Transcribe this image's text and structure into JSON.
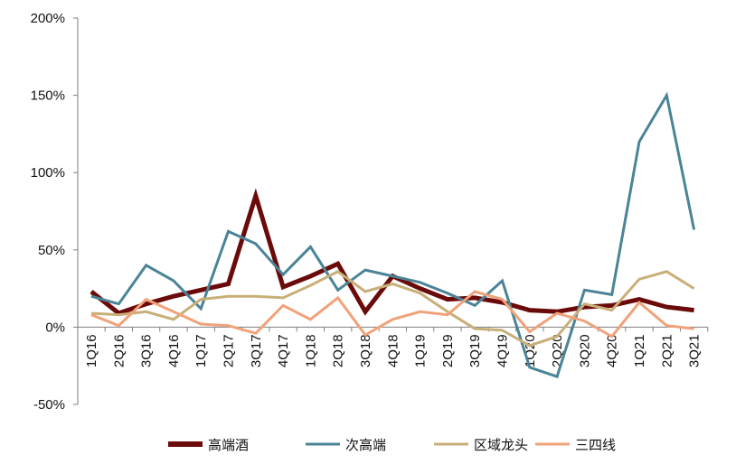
{
  "chart_data": {
    "type": "line",
    "title": "",
    "xlabel": "",
    "ylabel": "",
    "categories": [
      "1Q16",
      "2Q16",
      "3Q16",
      "4Q16",
      "1Q17",
      "2Q17",
      "3Q17",
      "4Q17",
      "1Q18",
      "2Q18",
      "3Q18",
      "4Q18",
      "1Q19",
      "2Q19",
      "3Q19",
      "4Q19",
      "1Q20",
      "2Q20",
      "3Q20",
      "4Q20",
      "1Q21",
      "2Q21",
      "3Q21"
    ],
    "y_ticks": [
      "200%",
      "150%",
      "100%",
      "50%",
      "0%",
      "-50%"
    ],
    "ylim": [
      -50,
      200
    ],
    "y_unit": "%",
    "grid": false,
    "legend_position": "bottom",
    "series": [
      {
        "name": "高端酒",
        "color": "#6B0A0A",
        "values": [
          23,
          9,
          15,
          20,
          24,
          28,
          85,
          26,
          33,
          41,
          10,
          33,
          25,
          18,
          19,
          16,
          11,
          10,
          13,
          14,
          18,
          13,
          11
        ]
      },
      {
        "name": "次高端",
        "color": "#4A8496",
        "values": [
          20,
          15,
          40,
          30,
          12,
          62,
          54,
          34,
          52,
          24,
          37,
          33,
          29,
          22,
          14,
          30,
          -26,
          -32,
          24,
          21,
          120,
          150,
          63
        ]
      },
      {
        "name": "区域龙头",
        "color": "#C8AF78",
        "values": [
          9,
          8,
          10,
          5,
          18,
          20,
          20,
          19,
          27,
          36,
          23,
          28,
          22,
          10,
          -1,
          -2,
          -12,
          -6,
          15,
          11,
          31,
          36,
          25
        ]
      },
      {
        "name": "三四线",
        "color": "#F0A27A",
        "values": [
          8,
          1,
          18,
          10,
          2,
          1,
          -4,
          14,
          5,
          19,
          -5,
          5,
          10,
          8,
          23,
          18,
          -3,
          9,
          4,
          -6,
          16,
          1,
          -1
        ]
      }
    ]
  }
}
